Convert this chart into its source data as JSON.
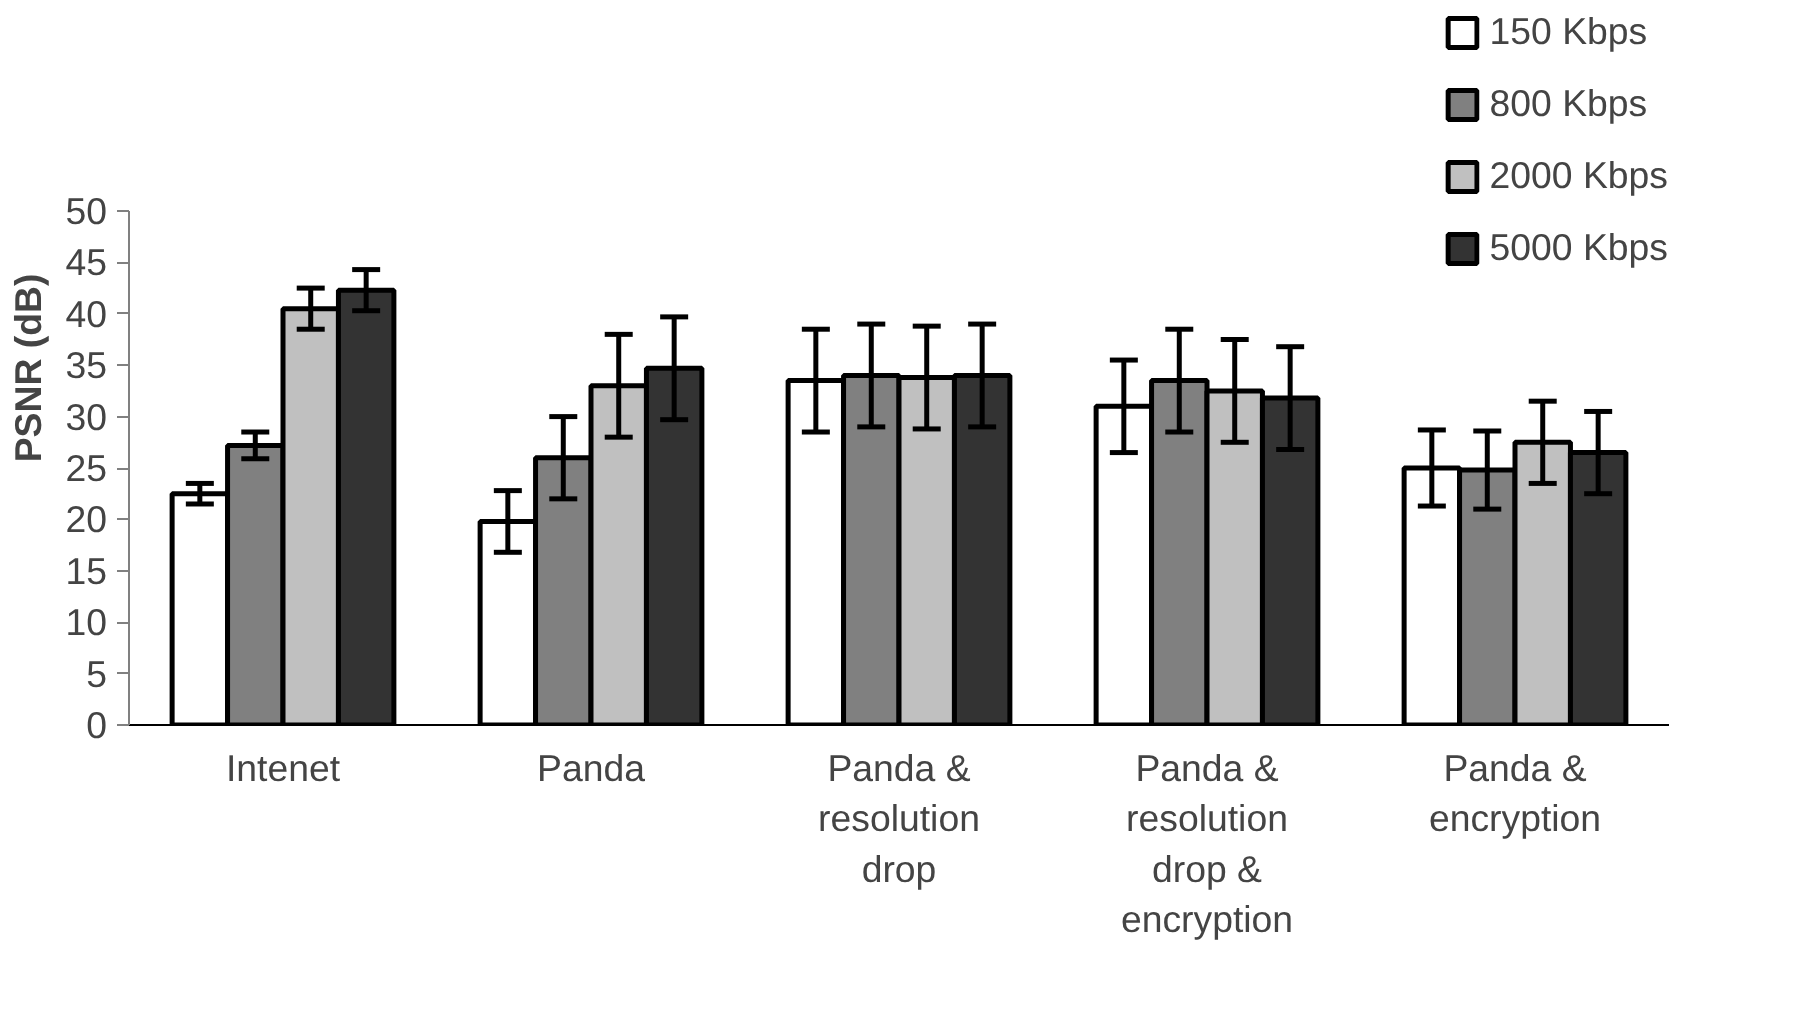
{
  "chart_data": {
    "type": "bar",
    "ylabel": "PSNR (dB)",
    "categories": [
      "Intenet",
      "Panda",
      "Panda &\nresolution\ndrop",
      "Panda &\nresolution\ndrop &\nencryption",
      "Panda &\nencryption"
    ],
    "series": [
      {
        "name": "150 Kbps",
        "color": "#ffffff",
        "values": [
          22.5,
          19.8,
          33.5,
          31,
          25
        ],
        "errors": [
          1,
          3,
          5,
          4.5,
          3.7
        ]
      },
      {
        "name": "800 Kbps",
        "color": "#808080",
        "values": [
          27.2,
          26,
          34,
          33.5,
          24.8
        ],
        "errors": [
          1.3,
          4,
          5,
          5,
          3.8
        ]
      },
      {
        "name": "2000 Kbps",
        "color": "#c0c0c0",
        "values": [
          40.5,
          33,
          33.8,
          32.5,
          27.5
        ],
        "errors": [
          2,
          5,
          5,
          5,
          4
        ]
      },
      {
        "name": "5000 Kbps",
        "color": "#333333",
        "values": [
          42.3,
          34.7,
          34,
          31.8,
          26.5
        ],
        "errors": [
          2,
          5,
          5,
          5,
          4
        ]
      }
    ],
    "ylim": [
      0,
      50
    ],
    "yticks": [
      0,
      5,
      10,
      15,
      20,
      25,
      30,
      35,
      40,
      45,
      50
    ],
    "grid": false,
    "legend": "top right"
  }
}
